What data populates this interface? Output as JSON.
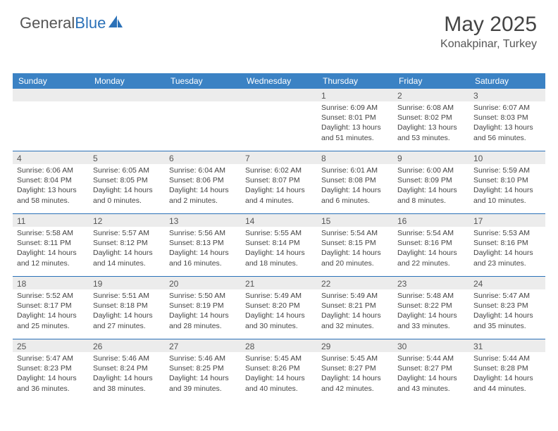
{
  "logo": {
    "text_gray": "General",
    "text_blue": "Blue"
  },
  "title": "May 2025",
  "location": "Konakpinar, Turkey",
  "colors": {
    "header_bg": "#3b82c4",
    "header_text": "#ffffff",
    "daynum_bg": "#ececec",
    "row_border": "#2b71b8",
    "text": "#444444"
  },
  "weekdays": [
    "Sunday",
    "Monday",
    "Tuesday",
    "Wednesday",
    "Thursday",
    "Friday",
    "Saturday"
  ],
  "weeks": [
    [
      null,
      null,
      null,
      null,
      {
        "day": "1",
        "sunrise": "6:09 AM",
        "sunset": "8:01 PM",
        "daylight": "13 hours and 51 minutes."
      },
      {
        "day": "2",
        "sunrise": "6:08 AM",
        "sunset": "8:02 PM",
        "daylight": "13 hours and 53 minutes."
      },
      {
        "day": "3",
        "sunrise": "6:07 AM",
        "sunset": "8:03 PM",
        "daylight": "13 hours and 56 minutes."
      }
    ],
    [
      {
        "day": "4",
        "sunrise": "6:06 AM",
        "sunset": "8:04 PM",
        "daylight": "13 hours and 58 minutes."
      },
      {
        "day": "5",
        "sunrise": "6:05 AM",
        "sunset": "8:05 PM",
        "daylight": "14 hours and 0 minutes."
      },
      {
        "day": "6",
        "sunrise": "6:04 AM",
        "sunset": "8:06 PM",
        "daylight": "14 hours and 2 minutes."
      },
      {
        "day": "7",
        "sunrise": "6:02 AM",
        "sunset": "8:07 PM",
        "daylight": "14 hours and 4 minutes."
      },
      {
        "day": "8",
        "sunrise": "6:01 AM",
        "sunset": "8:08 PM",
        "daylight": "14 hours and 6 minutes."
      },
      {
        "day": "9",
        "sunrise": "6:00 AM",
        "sunset": "8:09 PM",
        "daylight": "14 hours and 8 minutes."
      },
      {
        "day": "10",
        "sunrise": "5:59 AM",
        "sunset": "8:10 PM",
        "daylight": "14 hours and 10 minutes."
      }
    ],
    [
      {
        "day": "11",
        "sunrise": "5:58 AM",
        "sunset": "8:11 PM",
        "daylight": "14 hours and 12 minutes."
      },
      {
        "day": "12",
        "sunrise": "5:57 AM",
        "sunset": "8:12 PM",
        "daylight": "14 hours and 14 minutes."
      },
      {
        "day": "13",
        "sunrise": "5:56 AM",
        "sunset": "8:13 PM",
        "daylight": "14 hours and 16 minutes."
      },
      {
        "day": "14",
        "sunrise": "5:55 AM",
        "sunset": "8:14 PM",
        "daylight": "14 hours and 18 minutes."
      },
      {
        "day": "15",
        "sunrise": "5:54 AM",
        "sunset": "8:15 PM",
        "daylight": "14 hours and 20 minutes."
      },
      {
        "day": "16",
        "sunrise": "5:54 AM",
        "sunset": "8:16 PM",
        "daylight": "14 hours and 22 minutes."
      },
      {
        "day": "17",
        "sunrise": "5:53 AM",
        "sunset": "8:16 PM",
        "daylight": "14 hours and 23 minutes."
      }
    ],
    [
      {
        "day": "18",
        "sunrise": "5:52 AM",
        "sunset": "8:17 PM",
        "daylight": "14 hours and 25 minutes."
      },
      {
        "day": "19",
        "sunrise": "5:51 AM",
        "sunset": "8:18 PM",
        "daylight": "14 hours and 27 minutes."
      },
      {
        "day": "20",
        "sunrise": "5:50 AM",
        "sunset": "8:19 PM",
        "daylight": "14 hours and 28 minutes."
      },
      {
        "day": "21",
        "sunrise": "5:49 AM",
        "sunset": "8:20 PM",
        "daylight": "14 hours and 30 minutes."
      },
      {
        "day": "22",
        "sunrise": "5:49 AM",
        "sunset": "8:21 PM",
        "daylight": "14 hours and 32 minutes."
      },
      {
        "day": "23",
        "sunrise": "5:48 AM",
        "sunset": "8:22 PM",
        "daylight": "14 hours and 33 minutes."
      },
      {
        "day": "24",
        "sunrise": "5:47 AM",
        "sunset": "8:23 PM",
        "daylight": "14 hours and 35 minutes."
      }
    ],
    [
      {
        "day": "25",
        "sunrise": "5:47 AM",
        "sunset": "8:23 PM",
        "daylight": "14 hours and 36 minutes."
      },
      {
        "day": "26",
        "sunrise": "5:46 AM",
        "sunset": "8:24 PM",
        "daylight": "14 hours and 38 minutes."
      },
      {
        "day": "27",
        "sunrise": "5:46 AM",
        "sunset": "8:25 PM",
        "daylight": "14 hours and 39 minutes."
      },
      {
        "day": "28",
        "sunrise": "5:45 AM",
        "sunset": "8:26 PM",
        "daylight": "14 hours and 40 minutes."
      },
      {
        "day": "29",
        "sunrise": "5:45 AM",
        "sunset": "8:27 PM",
        "daylight": "14 hours and 42 minutes."
      },
      {
        "day": "30",
        "sunrise": "5:44 AM",
        "sunset": "8:27 PM",
        "daylight": "14 hours and 43 minutes."
      },
      {
        "day": "31",
        "sunrise": "5:44 AM",
        "sunset": "8:28 PM",
        "daylight": "14 hours and 44 minutes."
      }
    ]
  ],
  "labels": {
    "sunrise": "Sunrise:",
    "sunset": "Sunset:",
    "daylight": "Daylight:"
  }
}
